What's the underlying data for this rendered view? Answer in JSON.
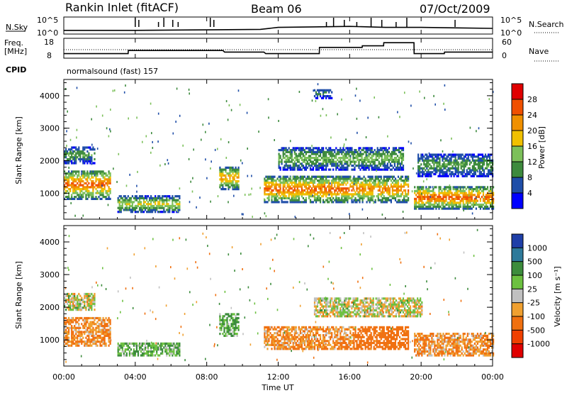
{
  "header": {
    "title": "Rankin Inlet (fitACF)",
    "beam": "Beam 06",
    "date": "07/Oct/2009"
  },
  "nsky_panel": {
    "left_label": "N.Sky",
    "left_ticks": [
      "10^5",
      "10^0"
    ],
    "right_ticks": [
      "10^5",
      "10^0"
    ],
    "right_label": "N.Search"
  },
  "freq_panel": {
    "left_label_line1": "Freq.",
    "left_label_line2": "[MHz]",
    "left_ticks": [
      "18",
      "8"
    ],
    "right_ticks": [
      "60",
      "0"
    ],
    "right_label": "Nave",
    "cpid_label": "CPID",
    "mode_text": "normalsound (fast) 157"
  },
  "x_axis": {
    "tick_labels": [
      "00:00",
      "04:00",
      "08:00",
      "12:00",
      "16:00",
      "20:00",
      "00:00"
    ],
    "label": "Time UT"
  },
  "power_panel": {
    "ylabel": "Slant Range [km]",
    "y_ticks": [
      "1000",
      "2000",
      "3000",
      "4000"
    ],
    "colorbar_label": "Power [dB]",
    "colorbar_ticks": [
      "4",
      "8",
      "12",
      "16",
      "20",
      "24",
      "28"
    ]
  },
  "velocity_panel": {
    "ylabel": "Slant Range [km]",
    "y_ticks": [
      "1000",
      "2000",
      "3000",
      "4000"
    ],
    "colorbar_label": "Velocity [m s⁻¹]",
    "colorbar_ticks": [
      "1000",
      "500",
      "100",
      "25",
      "-25",
      "-100",
      "-500",
      "-1000"
    ]
  },
  "chart_data": [
    {
      "type": "line",
      "title": "N.Sky / N.Search",
      "x": [
        0,
        4,
        8,
        11,
        12,
        14,
        16,
        18,
        20,
        22,
        24
      ],
      "series": [
        {
          "name": "N.Sky",
          "values": [
            0.3,
            0.3,
            0.35,
            0.4,
            0.6,
            0.65,
            0.7,
            0.6,
            0.6,
            0.55,
            0.5
          ]
        }
      ],
      "xlim": [
        0,
        24
      ],
      "ylim": [
        0,
        1
      ]
    },
    {
      "type": "line",
      "title": "Freq.",
      "x": [
        0,
        3.6,
        3.61,
        8.9,
        9.0,
        11.2,
        11.3,
        14.3,
        14.31,
        16.7,
        16.71,
        17.9,
        17.91,
        19.6,
        19.61,
        21.3,
        21.31,
        24
      ],
      "series": [
        {
          "name": "Freq.",
          "values": [
            10,
            10,
            12,
            12,
            11,
            11,
            10,
            10,
            14,
            14,
            15,
            15,
            17,
            17,
            10,
            10,
            11,
            11
          ]
        }
      ],
      "xlim": [
        0,
        24
      ],
      "ylim": [
        8,
        18
      ]
    },
    {
      "type": "heatmap",
      "title": "Power [dB]",
      "xlim": [
        0,
        24
      ],
      "ylim": [
        200,
        4500
      ],
      "colorscale_ticks": [
        4,
        8,
        12,
        16,
        20,
        24,
        28
      ],
      "regions": [
        {
          "t0": 0.0,
          "t1": 2.6,
          "r0": 800,
          "r1": 1700,
          "peak": 26
        },
        {
          "t0": 0.0,
          "t1": 1.7,
          "r0": 1900,
          "r1": 2400,
          "peak": 12
        },
        {
          "t0": 3.0,
          "t1": 6.5,
          "r0": 400,
          "r1": 900,
          "peak": 18
        },
        {
          "t0": 8.7,
          "t1": 9.8,
          "r0": 1100,
          "r1": 1800,
          "peak": 22
        },
        {
          "t0": 11.2,
          "t1": 16.2,
          "r0": 700,
          "r1": 1500,
          "peak": 26
        },
        {
          "t0": 12.0,
          "t1": 19.0,
          "r0": 1700,
          "r1": 2400,
          "peak": 14
        },
        {
          "t0": 16.2,
          "t1": 19.3,
          "r0": 700,
          "r1": 1500,
          "peak": 24
        },
        {
          "t0": 19.6,
          "t1": 24.0,
          "r0": 500,
          "r1": 1200,
          "peak": 26
        },
        {
          "t0": 19.8,
          "t1": 24.0,
          "r0": 1500,
          "r1": 2200,
          "peak": 12
        },
        {
          "t0": 14.0,
          "t1": 15.0,
          "r0": 3900,
          "r1": 4200,
          "peak": 10
        }
      ]
    },
    {
      "type": "heatmap",
      "title": "Velocity [m s⁻¹]",
      "xlim": [
        0,
        24
      ],
      "ylim": [
        200,
        4500
      ],
      "colorscale_ticks": [
        1000,
        500,
        100,
        25,
        -25,
        -100,
        -500,
        -1000
      ],
      "regions": [
        {
          "t0": 0.0,
          "t1": 2.6,
          "r0": 800,
          "r1": 1700,
          "v": -100
        },
        {
          "t0": 0.0,
          "t1": 1.7,
          "r0": 1900,
          "r1": 2400,
          "v": 0
        },
        {
          "t0": 3.0,
          "t1": 6.5,
          "r0": 500,
          "r1": 900,
          "v": 100
        },
        {
          "t0": 8.7,
          "t1": 9.8,
          "r0": 1100,
          "r1": 1800,
          "v": 100
        },
        {
          "t0": 11.2,
          "t1": 16.2,
          "r0": 700,
          "r1": 1400,
          "v": -100
        },
        {
          "t0": 14.0,
          "t1": 20.0,
          "r0": 1700,
          "r1": 2300,
          "v": 0
        },
        {
          "t0": 16.2,
          "t1": 19.3,
          "r0": 700,
          "r1": 1400,
          "v": -200
        },
        {
          "t0": 19.6,
          "t1": 24.0,
          "r0": 500,
          "r1": 1200,
          "v": -100
        }
      ]
    }
  ]
}
